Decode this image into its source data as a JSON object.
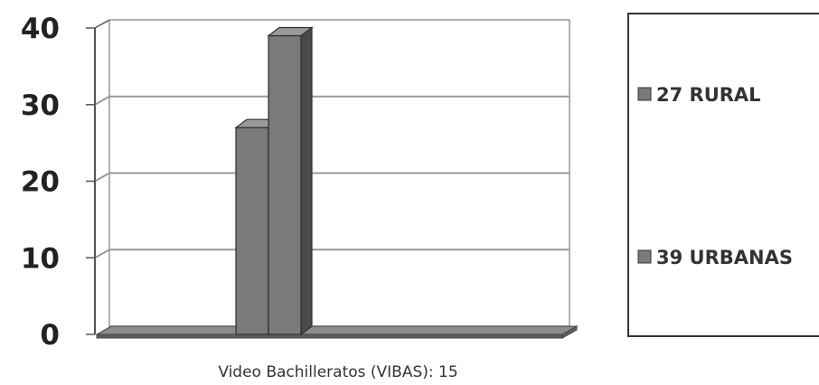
{
  "chart_data": {
    "type": "bar",
    "categories": [
      "Video Bachilleratos (VIBAS): 15"
    ],
    "series": [
      {
        "name": "27 RURAL",
        "values": [
          27
        ]
      },
      {
        "name": "39 URBANAS",
        "values": [
          39
        ]
      }
    ],
    "xlabel": "Video Bachilleratos (VIBAS): 15",
    "ylabel": "",
    "ylim": [
      0,
      40
    ],
    "yticks": [
      "0",
      "10",
      "20",
      "30",
      "40"
    ],
    "grid": true,
    "legend_position": "right",
    "colors": {
      "bar_front": "#7a7a7a",
      "bar_side": "#4a4a4a",
      "bar_top": "#9a9a9a",
      "grid": "#999999",
      "axis": "#555555",
      "floor": "#8c8c8c",
      "floor_front": "#5e5e5e"
    }
  }
}
